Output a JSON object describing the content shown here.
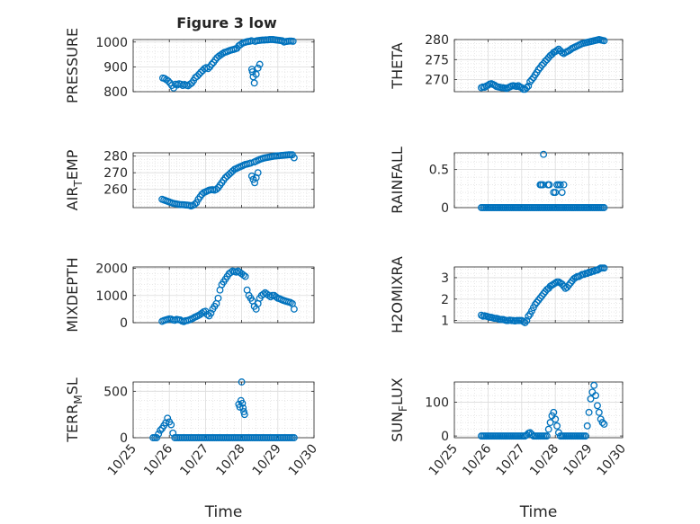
{
  "figure": {
    "title": "Figure 3 low",
    "xticks": [
      "10/25",
      "10/26",
      "10/27",
      "10/28",
      "10/29",
      "10/30"
    ],
    "xlabel": "Time",
    "marker_color": "#0072BD",
    "grid": true
  },
  "chart_data": [
    {
      "type": "scatter",
      "ylabel": "PRESSURE",
      "ylim": [
        800,
        1010
      ],
      "yticks": [
        800,
        900,
        1000
      ],
      "xlim": [
        0,
        5
      ],
      "x": [
        0.82,
        0.87,
        0.92,
        0.97,
        1.02,
        1.07,
        1.12,
        1.17,
        1.22,
        1.27,
        1.32,
        1.37,
        1.42,
        1.47,
        1.52,
        1.57,
        1.62,
        1.67,
        1.72,
        1.77,
        1.82,
        1.87,
        1.92,
        1.97,
        2.02,
        2.07,
        2.12,
        2.17,
        2.22,
        2.27,
        2.32,
        2.37,
        2.42,
        2.47,
        2.52,
        2.57,
        2.62,
        2.67,
        2.72,
        2.77,
        2.82,
        2.87,
        2.92,
        2.97,
        3.02,
        3.07,
        3.12,
        3.17,
        3.22,
        3.27,
        3.37,
        3.42,
        3.47,
        3.52,
        3.57,
        3.62,
        3.67,
        3.72,
        3.77,
        3.82,
        3.87,
        3.92,
        3.97,
        4.02,
        4.07,
        4.12,
        4.17,
        4.22,
        4.27,
        4.32,
        4.37,
        4.42,
        3.28,
        3.3,
        3.32,
        3.35,
        3.4,
        3.45,
        3.5
      ],
      "y": [
        855,
        853,
        848,
        843,
        835,
        825,
        815,
        830,
        827,
        832,
        830,
        825,
        829,
        826,
        824,
        830,
        835,
        845,
        857,
        862,
        870,
        878,
        885,
        893,
        897,
        893,
        900,
        910,
        918,
        928,
        937,
        943,
        948,
        953,
        958,
        960,
        963,
        966,
        968,
        970,
        972,
        975,
        985,
        990,
        995,
        998,
        1000,
        1002,
        1003,
        1005,
        1003,
        1005,
        1006,
        1007,
        1008,
        1008,
        1009,
        1009,
        1010,
        1010,
        1010,
        1009,
        1008,
        1007,
        1006,
        1005,
        1000,
        1002,
        1003,
        1004,
        1004,
        1003,
        890,
        880,
        860,
        835,
        870,
        895,
        910
      ]
    },
    {
      "type": "scatter",
      "ylabel": "THETA",
      "ylim": [
        267,
        280
      ],
      "yticks": [
        270,
        275,
        280
      ],
      "xlim": [
        0,
        5
      ],
      "x": [
        0.8,
        0.85,
        0.9,
        0.95,
        1.0,
        1.05,
        1.1,
        1.15,
        1.2,
        1.25,
        1.3,
        1.35,
        1.4,
        1.45,
        1.5,
        1.55,
        1.6,
        1.65,
        1.7,
        1.75,
        1.8,
        1.85,
        1.9,
        1.95,
        2.0,
        2.05,
        2.1,
        2.15,
        2.2,
        2.25,
        2.3,
        2.35,
        2.4,
        2.45,
        2.5,
        2.55,
        2.6,
        2.65,
        2.7,
        2.75,
        2.8,
        2.85,
        2.9,
        2.95,
        3.0,
        3.05,
        3.1,
        3.15,
        3.2,
        3.25,
        3.3,
        3.35,
        3.4,
        3.45,
        3.5,
        3.55,
        3.6,
        3.65,
        3.7,
        3.75,
        3.8,
        3.85,
        3.9,
        3.95,
        4.0,
        4.05,
        4.1,
        4.15,
        4.2,
        4.25,
        4.3,
        4.35,
        4.4,
        4.45
      ],
      "y": [
        268,
        268.2,
        268.1,
        268.4,
        268.6,
        268.9,
        269,
        268.8,
        268.6,
        268.3,
        268.2,
        268.1,
        268,
        268,
        267.9,
        267.8,
        268,
        268.2,
        268.4,
        268.5,
        268.4,
        268.3,
        268.5,
        268.2,
        268,
        267.6,
        267.6,
        268,
        268.4,
        269.5,
        270,
        270.5,
        271.2,
        271.8,
        272.5,
        273,
        273.6,
        274,
        274.6,
        275,
        275.5,
        276,
        276.3,
        276.8,
        277,
        277.3,
        277.6,
        277.2,
        276.8,
        276.5,
        276.8,
        277,
        277.2,
        277.5,
        277.8,
        278,
        278.2,
        278.4,
        278.6,
        278.8,
        279,
        279.1,
        279.2,
        279.3,
        279.4,
        279.5,
        279.6,
        279.7,
        279.8,
        279.9,
        280,
        279.9,
        279.8,
        279.7
      ]
    },
    {
      "type": "scatter",
      "ylabel": "AIR_TEMP",
      "ylim": [
        249,
        282
      ],
      "yticks": [
        260,
        270,
        280
      ],
      "xlim": [
        0,
        5
      ],
      "x": [
        0.8,
        0.85,
        0.9,
        0.95,
        1.0,
        1.05,
        1.1,
        1.15,
        1.2,
        1.25,
        1.3,
        1.35,
        1.4,
        1.45,
        1.5,
        1.55,
        1.6,
        1.65,
        1.7,
        1.75,
        1.8,
        1.85,
        1.9,
        1.95,
        2.0,
        2.05,
        2.1,
        2.15,
        2.2,
        2.25,
        2.3,
        2.35,
        2.4,
        2.45,
        2.5,
        2.55,
        2.6,
        2.65,
        2.7,
        2.75,
        2.8,
        2.85,
        2.9,
        2.95,
        3.0,
        3.05,
        3.1,
        3.15,
        3.2,
        3.25,
        3.35,
        3.4,
        3.45,
        3.5,
        3.55,
        3.6,
        3.65,
        3.7,
        3.75,
        3.8,
        3.85,
        3.9,
        3.95,
        4.0,
        4.05,
        4.1,
        4.15,
        4.2,
        4.25,
        4.3,
        4.35,
        4.4,
        4.45,
        3.28,
        3.32,
        3.36,
        3.4,
        3.45
      ],
      "y": [
        254,
        253.6,
        253.2,
        252.8,
        252.4,
        252,
        251.6,
        251.4,
        251.2,
        251,
        250.8,
        250.8,
        250.7,
        250.6,
        250.5,
        250.4,
        250,
        250.4,
        251,
        252,
        254,
        255.5,
        257,
        258,
        258.5,
        259,
        259.5,
        259.7,
        259.8,
        259.5,
        260,
        261,
        262.5,
        264,
        265.5,
        267,
        268,
        269,
        270,
        271,
        272,
        272.5,
        273,
        273.5,
        274,
        274.5,
        275,
        275.2,
        275.5,
        275.8,
        276.5,
        277,
        277.5,
        278,
        278.4,
        278.7,
        279,
        279.2,
        279.4,
        279.6,
        279.8,
        280,
        280.1,
        280.2,
        280.3,
        280.4,
        280.5,
        280.6,
        280.7,
        280.8,
        280.8,
        280.8,
        279,
        268,
        266,
        264,
        267,
        270
      ]
    },
    {
      "type": "scatter",
      "ylabel": "RAINFALL",
      "ylim": [
        0,
        0.72
      ],
      "yticks": [
        0,
        0.5
      ],
      "xlim": [
        0,
        5
      ],
      "x": [
        0.8,
        0.85,
        0.9,
        0.95,
        1.0,
        1.05,
        1.1,
        1.15,
        1.2,
        1.25,
        1.3,
        1.35,
        1.4,
        1.45,
        1.5,
        1.55,
        1.6,
        1.65,
        1.7,
        1.75,
        1.8,
        1.85,
        1.9,
        1.95,
        2.0,
        2.05,
        2.1,
        2.15,
        2.2,
        2.25,
        2.3,
        2.35,
        2.4,
        2.45,
        2.5,
        2.55,
        2.6,
        2.65,
        2.7,
        2.75,
        2.8,
        2.85,
        2.9,
        2.95,
        3.0,
        3.05,
        3.1,
        3.15,
        3.2,
        3.25,
        3.3,
        3.35,
        3.4,
        3.45,
        3.5,
        3.55,
        3.6,
        3.65,
        3.7,
        3.75,
        3.8,
        3.85,
        3.9,
        3.95,
        4.0,
        4.05,
        4.1,
        4.15,
        4.2,
        4.25,
        4.3,
        4.35,
        4.4,
        4.45,
        2.55,
        2.58,
        2.63,
        2.78,
        2.82,
        2.95,
        3.0,
        3.05,
        3.1,
        3.15,
        3.2,
        3.25,
        2.65
      ],
      "y": [
        0,
        0,
        0,
        0,
        0,
        0,
        0,
        0,
        0,
        0,
        0,
        0,
        0,
        0,
        0,
        0,
        0,
        0,
        0,
        0,
        0,
        0,
        0,
        0,
        0,
        0,
        0,
        0,
        0,
        0,
        0,
        0,
        0,
        0,
        0,
        0,
        0,
        0,
        0,
        0,
        0,
        0,
        0,
        0,
        0,
        0,
        0,
        0,
        0,
        0,
        0,
        0,
        0,
        0,
        0,
        0,
        0,
        0,
        0,
        0,
        0,
        0,
        0,
        0,
        0,
        0,
        0,
        0,
        0,
        0,
        0,
        0,
        0,
        0,
        0.3,
        0.3,
        0.3,
        0.3,
        0.3,
        0.2,
        0.2,
        0.3,
        0.3,
        0.3,
        0.2,
        0.3,
        0.7
      ]
    },
    {
      "type": "scatter",
      "ylabel": "MIXDEPTH",
      "ylim": [
        0,
        2050
      ],
      "yticks": [
        0,
        1000,
        2000
      ],
      "xlim": [
        0,
        5
      ],
      "x": [
        0.8,
        0.85,
        0.9,
        0.95,
        1.0,
        1.05,
        1.1,
        1.15,
        1.2,
        1.25,
        1.3,
        1.35,
        1.4,
        1.45,
        1.5,
        1.55,
        1.6,
        1.65,
        1.7,
        1.75,
        1.8,
        1.85,
        1.9,
        1.95,
        2.0,
        2.05,
        2.1,
        2.15,
        2.2,
        2.25,
        2.3,
        2.35,
        2.4,
        2.45,
        2.5,
        2.55,
        2.6,
        2.65,
        2.7,
        2.75,
        2.8,
        2.85,
        2.9,
        2.95,
        3.0,
        3.05,
        3.1,
        3.15,
        3.2,
        3.25,
        3.3,
        3.35,
        3.4,
        3.45,
        3.5,
        3.55,
        3.6,
        3.65,
        3.7,
        3.75,
        3.8,
        3.85,
        3.9,
        3.95,
        4.0,
        4.05,
        4.1,
        4.15,
        4.2,
        4.25,
        4.3,
        4.35,
        4.4,
        4.45
      ],
      "y": [
        50,
        80,
        100,
        120,
        140,
        130,
        100,
        90,
        120,
        110,
        100,
        60,
        40,
        70,
        80,
        100,
        130,
        160,
        200,
        230,
        260,
        300,
        350,
        400,
        420,
        300,
        250,
        350,
        500,
        600,
        700,
        900,
        1200,
        1400,
        1500,
        1600,
        1700,
        1800,
        1850,
        1900,
        1880,
        1860,
        1900,
        1850,
        1800,
        1750,
        1700,
        1200,
        1000,
        900,
        800,
        600,
        500,
        700,
        900,
        1000,
        1050,
        1100,
        1050,
        1000,
        950,
        1000,
        1000,
        950,
        900,
        880,
        850,
        820,
        800,
        780,
        760,
        740,
        700,
        500
      ]
    },
    {
      "type": "scatter",
      "ylabel": "H2OMIXRA",
      "ylim": [
        0.9,
        3.5
      ],
      "yticks": [
        1,
        2,
        3
      ],
      "xlim": [
        0,
        5
      ],
      "x": [
        0.8,
        0.85,
        0.9,
        0.95,
        1.0,
        1.05,
        1.1,
        1.15,
        1.2,
        1.25,
        1.3,
        1.35,
        1.4,
        1.45,
        1.5,
        1.55,
        1.6,
        1.65,
        1.7,
        1.75,
        1.8,
        1.85,
        1.9,
        1.95,
        2.0,
        2.05,
        2.1,
        2.15,
        2.2,
        2.25,
        2.3,
        2.35,
        2.4,
        2.45,
        2.5,
        2.55,
        2.6,
        2.65,
        2.7,
        2.75,
        2.8,
        2.85,
        2.9,
        2.95,
        3.0,
        3.05,
        3.1,
        3.15,
        3.2,
        3.25,
        3.3,
        3.35,
        3.4,
        3.45,
        3.5,
        3.55,
        3.6,
        3.65,
        3.7,
        3.75,
        3.8,
        3.85,
        3.9,
        3.95,
        4.0,
        4.05,
        4.1,
        4.15,
        4.2,
        4.25,
        4.3,
        4.35,
        4.4,
        4.45
      ],
      "y": [
        1.25,
        1.2,
        1.22,
        1.2,
        1.18,
        1.15,
        1.15,
        1.12,
        1.1,
        1.1,
        1.08,
        1.05,
        1.05,
        1.05,
        1.02,
        1.0,
        1.0,
        1.02,
        1.0,
        1.0,
        0.98,
        1.0,
        1.0,
        1.0,
        1.0,
        0.95,
        0.9,
        1.0,
        1.2,
        1.3,
        1.45,
        1.6,
        1.75,
        1.85,
        1.95,
        2.05,
        2.15,
        2.25,
        2.35,
        2.45,
        2.5,
        2.6,
        2.65,
        2.7,
        2.75,
        2.8,
        2.8,
        2.75,
        2.7,
        2.6,
        2.5,
        2.55,
        2.65,
        2.75,
        2.85,
        2.95,
        3.0,
        3.05,
        3.05,
        3.1,
        3.15,
        3.15,
        3.2,
        3.2,
        3.25,
        3.25,
        3.3,
        3.3,
        3.35,
        3.35,
        3.4,
        3.45,
        3.45,
        3.45
      ]
    },
    {
      "type": "scatter",
      "ylabel": "TERR_MSL",
      "ylim": [
        0,
        600
      ],
      "yticks": [
        0,
        500
      ],
      "xlim": [
        0,
        5
      ],
      "x": [
        0.55,
        0.6,
        0.65,
        0.7,
        0.75,
        0.8,
        0.85,
        0.9,
        0.95,
        1.0,
        1.05,
        1.1,
        1.15,
        1.2,
        1.25,
        1.3,
        1.35,
        1.4,
        1.45,
        1.5,
        1.55,
        1.6,
        1.65,
        1.7,
        1.75,
        1.8,
        1.85,
        1.9,
        1.95,
        2.0,
        2.05,
        2.1,
        2.15,
        2.2,
        2.25,
        2.3,
        2.35,
        2.4,
        2.45,
        2.5,
        2.55,
        2.6,
        2.65,
        2.7,
        2.75,
        2.8,
        2.85,
        2.9,
        2.95,
        3.0,
        3.05,
        3.1,
        3.15,
        3.2,
        3.25,
        3.3,
        3.35,
        3.4,
        3.45,
        3.5,
        3.55,
        3.6,
        3.65,
        3.7,
        3.75,
        3.8,
        3.85,
        3.9,
        3.95,
        4.0,
        4.05,
        4.1,
        4.15,
        4.2,
        4.25,
        4.3,
        4.35,
        4.4,
        4.45,
        2.92,
        2.95,
        2.98,
        3.0,
        3.02,
        3.04,
        3.06,
        3.08
      ],
      "y": [
        0,
        0,
        0,
        40,
        80,
        100,
        130,
        160,
        210,
        170,
        140,
        50,
        0,
        0,
        0,
        0,
        0,
        0,
        0,
        0,
        0,
        0,
        0,
        0,
        0,
        0,
        0,
        0,
        0,
        0,
        0,
        0,
        0,
        0,
        0,
        0,
        0,
        0,
        0,
        0,
        0,
        0,
        0,
        0,
        0,
        0,
        0,
        0,
        0,
        0,
        0,
        0,
        0,
        0,
        0,
        0,
        0,
        0,
        0,
        0,
        0,
        0,
        0,
        0,
        0,
        0,
        0,
        0,
        0,
        0,
        0,
        0,
        0,
        0,
        0,
        0,
        0,
        0,
        0,
        360,
        330,
        400,
        600,
        370,
        320,
        280,
        250
      ]
    },
    {
      "type": "scatter",
      "ylabel": "SUN_FLUX",
      "ylim": [
        -5,
        160
      ],
      "yticks": [
        0,
        100
      ],
      "xlim": [
        0,
        5
      ],
      "x": [
        0.8,
        0.85,
        0.9,
        0.95,
        1.0,
        1.05,
        1.1,
        1.15,
        1.2,
        1.25,
        1.3,
        1.35,
        1.4,
        1.45,
        1.5,
        1.55,
        1.6,
        1.65,
        1.7,
        1.75,
        1.8,
        1.85,
        1.9,
        1.95,
        2.0,
        2.05,
        2.1,
        2.15,
        2.2,
        2.25,
        2.3,
        2.35,
        2.4,
        2.45,
        2.5,
        2.55,
        2.6,
        2.65,
        2.7,
        2.75,
        2.8,
        2.85,
        2.9,
        2.95,
        3.0,
        3.05,
        3.1,
        3.15,
        3.2,
        3.25,
        3.3,
        3.35,
        3.4,
        3.45,
        3.5,
        3.55,
        3.6,
        3.65,
        3.7,
        3.75,
        3.8,
        3.85,
        3.9,
        3.95,
        4.0,
        4.05,
        4.1,
        4.15,
        4.2,
        4.25,
        4.3,
        4.35,
        4.4,
        4.45
      ],
      "y": [
        0,
        0,
        0,
        0,
        0,
        0,
        0,
        0,
        0,
        0,
        0,
        0,
        0,
        0,
        0,
        0,
        0,
        0,
        0,
        0,
        0,
        0,
        0,
        0,
        0,
        0,
        0,
        3,
        8,
        10,
        5,
        0,
        0,
        0,
        0,
        0,
        0,
        0,
        0,
        0,
        20,
        40,
        60,
        70,
        50,
        30,
        10,
        0,
        0,
        0,
        0,
        0,
        0,
        0,
        0,
        0,
        0,
        0,
        0,
        0,
        0,
        0,
        0,
        30,
        70,
        110,
        130,
        150,
        120,
        90,
        70,
        50,
        40,
        35
      ]
    }
  ]
}
